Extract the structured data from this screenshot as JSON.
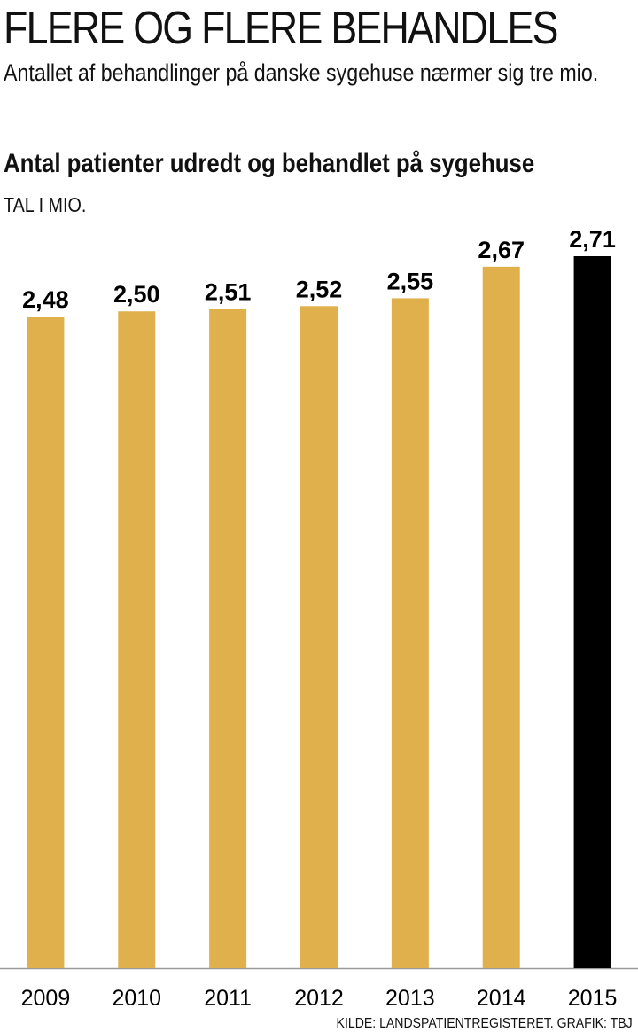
{
  "chart_data": {
    "type": "bar",
    "title": "FLERE OG FLERE BEHANDLES",
    "subtitle": "Antallet af behandlinger på danske sygehuse nærmer sig tre mio.",
    "chart_title": "Antal patienter udredt og behandlet på sygehuse",
    "unit": "TAL I MIO.",
    "categories": [
      "2009",
      "2010",
      "2011",
      "2012",
      "2013",
      "2014",
      "2015"
    ],
    "values": [
      2.48,
      2.5,
      2.51,
      2.52,
      2.55,
      2.67,
      2.71
    ],
    "value_labels": [
      "2,48",
      "2,50",
      "2,51",
      "2,52",
      "2,55",
      "2,67",
      "2,71"
    ],
    "colors": [
      "#e0b04c",
      "#e0b04c",
      "#e0b04c",
      "#e0b04c",
      "#e0b04c",
      "#e0b04c",
      "#000000"
    ],
    "source": "KILDE: LANDSPATIENTREGISTERET. GRAFIK: TBJ"
  }
}
